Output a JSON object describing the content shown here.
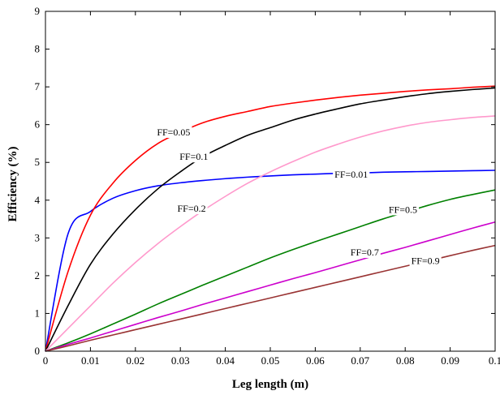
{
  "chart_data": {
    "type": "line",
    "title": "",
    "xlabel": "Leg length (m)",
    "ylabel": "Efficiency (%)",
    "xlim": [
      0,
      0.1
    ],
    "ylim": [
      0,
      9
    ],
    "grid": false,
    "legend": "inline labels",
    "xticks": [
      "0",
      "0.01",
      "0.02",
      "0.03",
      "0.04",
      "0.05",
      "0.06",
      "0.07",
      "0.08",
      "0.09",
      "0.1"
    ],
    "yticks": [
      "0",
      "1",
      "2",
      "3",
      "4",
      "5",
      "6",
      "7",
      "8",
      "9"
    ],
    "x": [
      0,
      0.005,
      0.01,
      0.015,
      0.02,
      0.025,
      0.03,
      0.035,
      0.04,
      0.045,
      0.05,
      0.055,
      0.06,
      0.065,
      0.07,
      0.075,
      0.08,
      0.085,
      0.09,
      0.095,
      0.1
    ],
    "series": [
      {
        "name": "FF=0.01",
        "color": "#0000ff",
        "label_x": 0.068,
        "label_y": 4.68,
        "values": [
          0,
          3.1,
          3.7,
          4.05,
          4.25,
          4.38,
          4.46,
          4.52,
          4.57,
          4.61,
          4.64,
          4.67,
          4.69,
          4.71,
          4.72,
          4.74,
          4.75,
          4.76,
          4.77,
          4.78,
          4.79
        ]
      },
      {
        "name": "FF=0.05",
        "color": "#ff0000",
        "label_x": 0.0285,
        "label_y": 5.8,
        "values": [
          0,
          2.1,
          3.6,
          4.45,
          5.05,
          5.5,
          5.8,
          6.05,
          6.22,
          6.35,
          6.48,
          6.57,
          6.65,
          6.72,
          6.78,
          6.83,
          6.88,
          6.92,
          6.95,
          6.99,
          7.02
        ]
      },
      {
        "name": "FF=0.1",
        "color": "#000000",
        "label_x": 0.033,
        "label_y": 5.15,
        "values": [
          0,
          1.2,
          2.3,
          3.1,
          3.75,
          4.3,
          4.75,
          5.15,
          5.45,
          5.72,
          5.92,
          6.12,
          6.28,
          6.42,
          6.55,
          6.65,
          6.74,
          6.82,
          6.88,
          6.93,
          6.97
        ]
      },
      {
        "name": "FF=0.2",
        "color": "#ff99cc",
        "label_x": 0.0325,
        "label_y": 3.78,
        "values": [
          0,
          0.6,
          1.2,
          1.8,
          2.35,
          2.85,
          3.3,
          3.72,
          4.1,
          4.45,
          4.75,
          5.02,
          5.27,
          5.48,
          5.67,
          5.83,
          5.96,
          6.06,
          6.13,
          6.19,
          6.23
        ]
      },
      {
        "name": "FF=0.5",
        "color": "#008000",
        "label_x": 0.0795,
        "label_y": 3.75,
        "values": [
          0,
          0.22,
          0.46,
          0.72,
          0.98,
          1.25,
          1.5,
          1.75,
          1.99,
          2.23,
          2.47,
          2.69,
          2.9,
          3.1,
          3.3,
          3.5,
          3.68,
          3.86,
          4.02,
          4.15,
          4.27
        ]
      },
      {
        "name": "FF=0.7",
        "color": "#cc00cc",
        "label_x": 0.071,
        "label_y": 2.62,
        "values": [
          0,
          0.18,
          0.35,
          0.53,
          0.71,
          0.89,
          1.06,
          1.24,
          1.41,
          1.58,
          1.75,
          1.92,
          2.08,
          2.25,
          2.42,
          2.59,
          2.75,
          2.92,
          3.09,
          3.26,
          3.42
        ]
      },
      {
        "name": "FF=0.9",
        "color": "#993333",
        "label_x": 0.0845,
        "label_y": 2.4,
        "values": [
          0,
          0.14,
          0.29,
          0.43,
          0.57,
          0.71,
          0.85,
          0.99,
          1.13,
          1.27,
          1.41,
          1.55,
          1.69,
          1.83,
          1.97,
          2.11,
          2.25,
          2.39,
          2.53,
          2.67,
          2.8
        ]
      }
    ]
  }
}
